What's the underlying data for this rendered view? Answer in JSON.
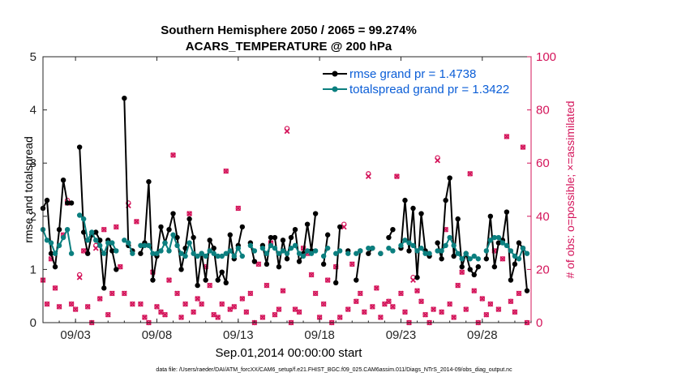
{
  "colors": {
    "rmse": "#000000",
    "spread": "#0b7f7f",
    "obs": "#d4145a",
    "legend_text": "#0b5ed7",
    "right_axis": "#d4145a"
  },
  "footer": "data file: /Users/raeder/DAI/ATM_forcXX/CAM6_setup/f.e21.FHIST_BGC.f09_025.CAM6assim.011/Diags_NTrS_2014-09/obs_diag_output.nc",
  "chart_data": {
    "type": "line",
    "title": "Southern Hemisphere 2050 / 2065 = 99.274%",
    "subtitle": "ACARS_TEMPERATURE @ 200 hPa",
    "xlabel": "Sep.01,2014 00:00:00 start",
    "ylabel": "rmse and totalspread",
    "y2label": "# of obs: o=possible; ×=assimilated",
    "xlim": [
      1,
      31
    ],
    "ylim": [
      0,
      5
    ],
    "y2lim": [
      0,
      100
    ],
    "xticks": [
      3,
      8,
      13,
      18,
      23,
      28
    ],
    "xtick_labels": [
      "09/03",
      "09/08",
      "09/13",
      "09/18",
      "09/23",
      "09/28"
    ],
    "yticks": [
      0,
      1,
      2,
      3,
      4,
      5
    ],
    "ytick_labels": [
      "0",
      "1",
      "2",
      "3",
      "4",
      "5"
    ],
    "y2ticks": [
      0,
      20,
      40,
      60,
      80,
      100
    ],
    "y2tick_labels": [
      "0",
      "20",
      "40",
      "60",
      "80",
      "100"
    ],
    "legend": [
      "rmse grand pr = 1.4738",
      "totalspread grand pr = 1.3422"
    ],
    "x": [
      1.0,
      1.25,
      1.5,
      1.75,
      2.0,
      2.25,
      2.5,
      2.75,
      3.0,
      3.25,
      3.5,
      3.75,
      4.0,
      4.25,
      4.5,
      4.75,
      5.0,
      5.25,
      5.5,
      5.75,
      6.0,
      6.25,
      6.5,
      6.75,
      7.0,
      7.25,
      7.5,
      7.75,
      8.0,
      8.25,
      8.5,
      8.75,
      9.0,
      9.25,
      9.5,
      9.75,
      10.0,
      10.25,
      10.5,
      10.75,
      11.0,
      11.25,
      11.5,
      11.75,
      12.0,
      12.25,
      12.5,
      12.75,
      13.0,
      13.25,
      13.5,
      13.75,
      14.0,
      14.25,
      14.5,
      14.75,
      15.0,
      15.25,
      15.5,
      15.75,
      16.0,
      16.25,
      16.5,
      16.75,
      17.0,
      17.25,
      17.5,
      17.75,
      18.0,
      18.25,
      18.5,
      18.75,
      19.0,
      19.25,
      19.5,
      19.75,
      20.0,
      20.25,
      20.5,
      20.75,
      21.0,
      21.25,
      21.5,
      21.75,
      22.0,
      22.25,
      22.5,
      22.75,
      23.0,
      23.25,
      23.5,
      23.75,
      24.0,
      24.25,
      24.5,
      24.75,
      25.0,
      25.25,
      25.5,
      25.75,
      26.0,
      26.25,
      26.5,
      26.75,
      27.0,
      27.25,
      27.5,
      27.75,
      28.0,
      28.25,
      28.5,
      28.75,
      29.0,
      29.25,
      29.5,
      29.75,
      30.0,
      30.25,
      30.5,
      30.75
    ],
    "series": [
      {
        "name": "rmse grand pr = 1.4738",
        "axis": "left",
        "values": [
          2.15,
          2.3,
          1.3,
          1.05,
          1.75,
          2.68,
          2.25,
          2.25,
          null,
          3.3,
          1.7,
          1.3,
          1.65,
          1.7,
          1.55,
          0.65,
          1.55,
          1.35,
          1.0,
          null,
          4.22,
          1.45,
          1.35,
          null,
          1.3,
          1.5,
          2.65,
          0.8,
          1.25,
          1.8,
          1.5,
          1.75,
          2.05,
          1.6,
          1.0,
          1.4,
          1.95,
          1.6,
          0.7,
          1.3,
          0.8,
          1.55,
          1.4,
          0.8,
          0.95,
          0.75,
          1.65,
          1.2,
          1.45,
          1.8,
          null,
          1.5,
          1.15,
          null,
          1.45,
          1.1,
          1.6,
          1.6,
          1.05,
          1.55,
          1.2,
          1.6,
          1.75,
          1.15,
          1.3,
          1.85,
          1.35,
          2.05,
          null,
          1.1,
          1.65,
          null,
          0.75,
          1.8,
          null,
          1.35,
          null,
          0.8,
          1.35,
          null,
          1.3,
          1.4,
          null,
          1.3,
          null,
          1.6,
          1.75,
          null,
          1.4,
          2.3,
          1.35,
          2.15,
          0.85,
          2.05,
          1.35,
          1.25,
          null,
          1.5,
          1.2,
          2.3,
          2.72,
          1.25,
          1.95,
          1.05,
          1.3,
          1.0,
          0.9,
          1.05,
          null,
          1.2,
          2.0,
          1.05,
          1.5,
          1.55,
          2.08,
          0.8,
          1.1,
          1.5,
          1.4,
          0.6
        ],
        "extra_points": [
          [
            28.25,
            1.0
          ],
          [
            28.75,
            0.6
          ],
          [
            29.25,
            1.12
          ],
          [
            29.75,
            1.1
          ],
          [
            30.0,
            0.68
          ],
          [
            30.5,
            1.26
          ],
          [
            30.75,
            0.6
          ]
        ]
      },
      {
        "name": "totalspread grand pr = 1.3422",
        "axis": "left",
        "values": [
          1.75,
          1.55,
          1.5,
          1.3,
          1.45,
          1.6,
          1.75,
          1.3,
          null,
          2.02,
          1.95,
          1.55,
          1.7,
          1.55,
          1.45,
          1.3,
          1.5,
          1.5,
          1.35,
          null,
          1.55,
          1.5,
          1.3,
          null,
          1.45,
          1.45,
          1.45,
          1.3,
          1.3,
          1.35,
          1.5,
          1.35,
          1.65,
          1.45,
          1.3,
          1.25,
          1.5,
          1.3,
          1.25,
          1.3,
          1.25,
          1.35,
          1.3,
          1.25,
          1.25,
          1.3,
          1.35,
          1.25,
          1.4,
          1.25,
          null,
          1.45,
          1.35,
          null,
          1.4,
          1.3,
          1.45,
          1.4,
          1.3,
          1.35,
          1.3,
          1.4,
          1.45,
          1.3,
          1.25,
          1.35,
          1.3,
          1.35,
          null,
          1.25,
          1.4,
          null,
          1.3,
          1.35,
          null,
          1.3,
          null,
          1.3,
          1.35,
          null,
          1.4,
          1.4,
          null,
          1.3,
          null,
          1.4,
          1.35,
          null,
          1.45,
          1.55,
          1.5,
          1.45,
          1.35,
          1.4,
          1.3,
          1.3,
          null,
          1.35,
          1.35,
          1.45,
          1.6,
          1.45,
          1.3,
          1.2,
          1.3,
          1.2,
          1.25,
          1.2,
          null,
          1.35,
          1.55,
          1.6,
          1.6,
          1.5,
          1.45,
          1.35,
          1.25,
          1.2,
          1.4,
          1.3
        ],
        "extra_points": []
      }
    ],
    "obs_possible": {
      "axis": "right",
      "x": [
        1.0,
        1.25,
        1.5,
        1.75,
        2.0,
        2.25,
        2.5,
        2.75,
        3.0,
        3.25,
        3.5,
        3.75,
        4.0,
        4.25,
        4.5,
        4.75,
        5.0,
        5.25,
        5.5,
        5.75,
        6.0,
        6.25,
        6.5,
        6.75,
        7.0,
        7.25,
        7.5,
        7.75,
        8.0,
        8.25,
        8.5,
        8.75,
        9.0,
        9.25,
        9.5,
        9.75,
        10.0,
        10.25,
        10.5,
        10.75,
        11.0,
        11.25,
        11.5,
        11.75,
        12.0,
        12.25,
        12.5,
        12.75,
        13.0,
        13.25,
        13.5,
        13.75,
        14.0,
        14.25,
        14.5,
        14.75,
        15.0,
        15.25,
        15.5,
        15.75,
        16.0,
        16.25,
        16.5,
        16.75,
        17.0,
        17.25,
        17.5,
        17.75,
        18.0,
        18.25,
        18.5,
        18.75,
        19.0,
        19.25,
        19.5,
        19.75,
        20.0,
        20.25,
        20.5,
        20.75,
        21.0,
        21.25,
        21.5,
        21.75,
        22.0,
        22.25,
        22.5,
        22.75,
        23.0,
        23.25,
        23.5,
        23.75,
        24.0,
        24.25,
        24.5,
        24.75,
        25.0,
        25.25,
        25.5,
        25.75,
        26.0,
        26.25,
        26.5,
        26.75,
        27.0,
        27.25,
        27.5,
        27.75,
        28.0,
        28.25,
        28.5,
        28.75,
        29.0,
        29.25,
        29.5,
        29.75,
        30.0,
        30.25,
        30.5,
        30.75
      ],
      "values": [
        16,
        7,
        24,
        13,
        6,
        33,
        46,
        7,
        5,
        18,
        27,
        6,
        0,
        29,
        9,
        35,
        3,
        11,
        36,
        21,
        11,
        45,
        7,
        38,
        7,
        2,
        0,
        19,
        6,
        4,
        3,
        16,
        63,
        11,
        2,
        7,
        41,
        4,
        9,
        7,
        21,
        14,
        3,
        2,
        7,
        57,
        5,
        6,
        43,
        9,
        4,
        11,
        0,
        22,
        2,
        14,
        30,
        3,
        5,
        12,
        73,
        0,
        5,
        4,
        28,
        26,
        18,
        11,
        2,
        7,
        16,
        0,
        21,
        2,
        37,
        5,
        22,
        8,
        11,
        4,
        56,
        6,
        13,
        2,
        7,
        8,
        6,
        55,
        11,
        4,
        0,
        17,
        12,
        8,
        3,
        0,
        5,
        62,
        4,
        35,
        7,
        2,
        14,
        19,
        5,
        56,
        12,
        0,
        9,
        3,
        7,
        27,
        5,
        24,
        70,
        8,
        4,
        11,
        66,
        0
      ]
    },
    "obs_assimilated": {
      "axis": "right",
      "values": [
        16,
        7,
        24,
        13,
        6,
        33,
        45,
        7,
        5,
        17,
        27,
        6,
        0,
        28,
        9,
        35,
        3,
        11,
        36,
        21,
        11,
        44,
        7,
        38,
        7,
        2,
        0,
        19,
        6,
        4,
        3,
        16,
        63,
        11,
        2,
        7,
        41,
        4,
        9,
        7,
        21,
        14,
        3,
        2,
        7,
        57,
        5,
        6,
        43,
        9,
        4,
        11,
        0,
        22,
        2,
        14,
        30,
        3,
        5,
        12,
        72,
        0,
        5,
        4,
        28,
        26,
        18,
        11,
        2,
        7,
        16,
        0,
        21,
        2,
        36,
        5,
        22,
        8,
        11,
        4,
        55,
        6,
        13,
        2,
        7,
        8,
        6,
        55,
        11,
        4,
        0,
        16,
        12,
        8,
        3,
        0,
        5,
        61,
        4,
        35,
        7,
        2,
        14,
        19,
        5,
        56,
        12,
        0,
        9,
        3,
        7,
        27,
        5,
        24,
        70,
        8,
        4,
        11,
        66,
        0
      ]
    }
  }
}
